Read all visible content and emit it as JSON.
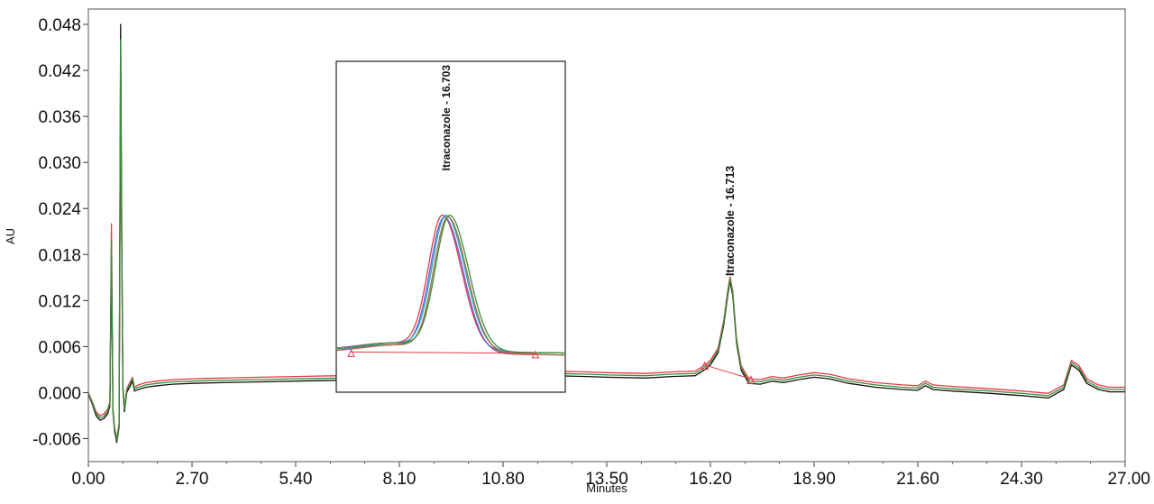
{
  "chart_data": {
    "type": "line",
    "title": "",
    "xlabel": "Minutes",
    "ylabel": "AU",
    "xlim": [
      0,
      27
    ],
    "ylim": [
      -0.009,
      0.05
    ],
    "x_ticks": [
      "0.00",
      "2.70",
      "5.40",
      "8.10",
      "10.80",
      "13.50",
      "16.20",
      "18.90",
      "21.60",
      "24.30",
      "27.00"
    ],
    "y_ticks": [
      "-0.006",
      "0.000",
      "0.006",
      "0.012",
      "0.018",
      "0.024",
      "0.030",
      "0.036",
      "0.042",
      "0.048"
    ],
    "grid": false,
    "legend": "none",
    "colors": [
      "#e23a4a",
      "#111111",
      "#3a8f3a",
      "#5a5fd6",
      "#a56a3a",
      "#2aa7c9"
    ],
    "baseline_color": "#e23a4a",
    "peak": {
      "label": "Itraconazole - 16.713",
      "retention_time": 16.713,
      "height": 0.0145,
      "start": 16.05,
      "end": 17.25
    },
    "zoom_inset": {
      "label": "Itraconazole - 16.703",
      "retention_time": 16.703,
      "x_range": [
        15.6,
        17.9
      ],
      "y_range": [
        -0.0005,
        0.0215
      ]
    },
    "series": [
      {
        "x": [
          0.0,
          0.1,
          0.2,
          0.3,
          0.4,
          0.5,
          0.56,
          0.6,
          0.64,
          0.68,
          0.74,
          0.8,
          0.84,
          0.87,
          0.9,
          0.94,
          1.0,
          1.1,
          1.15,
          1.2,
          1.3,
          1.5,
          1.8,
          2.2,
          2.7,
          3.5,
          4.5,
          5.4,
          6.5,
          7.5,
          8.1,
          9.0,
          10.0,
          10.8,
          12.0,
          13.0,
          13.5,
          14.5,
          15.2,
          15.8,
          16.0,
          16.2,
          16.4,
          16.55,
          16.65,
          16.71,
          16.78,
          16.88,
          17.0,
          17.2,
          17.5,
          17.8,
          18.1,
          18.5,
          18.9,
          19.3,
          19.8,
          20.5,
          21.2,
          21.6,
          21.8,
          22.0,
          22.5,
          23.5,
          24.3,
          25.0,
          25.4,
          25.6,
          25.8,
          26.0,
          26.3,
          26.6,
          27.0
        ],
        "y": [
          0.0,
          -0.0012,
          -0.0025,
          -0.003,
          -0.0028,
          -0.0022,
          -0.0012,
          0.022,
          -0.002,
          -0.0045,
          -0.006,
          -0.004,
          0.038,
          0.018,
          0.001,
          -0.002,
          0.0005,
          0.0015,
          0.002,
          0.0007,
          0.001,
          0.0013,
          0.0015,
          0.0017,
          0.0018,
          0.0019,
          0.002,
          0.0021,
          0.0022,
          0.0023,
          0.0024,
          0.0025,
          0.0026,
          0.0027,
          0.0028,
          0.0027,
          0.0026,
          0.0025,
          0.0027,
          0.0028,
          0.0034,
          0.0042,
          0.0058,
          0.0095,
          0.0133,
          0.0151,
          0.0133,
          0.007,
          0.0035,
          0.0018,
          0.0017,
          0.0021,
          0.0019,
          0.0023,
          0.0026,
          0.0024,
          0.0018,
          0.0013,
          0.001,
          0.0009,
          0.0015,
          0.001,
          0.0008,
          0.0005,
          0.0002,
          -0.0001,
          0.001,
          0.0042,
          0.0035,
          0.0018,
          0.001,
          0.0007,
          0.0007
        ]
      },
      {
        "x": [
          0.0,
          0.1,
          0.2,
          0.3,
          0.4,
          0.5,
          0.56,
          0.6,
          0.64,
          0.68,
          0.74,
          0.8,
          0.84,
          0.87,
          0.9,
          0.94,
          1.0,
          1.1,
          1.15,
          1.2,
          1.3,
          1.5,
          1.8,
          2.2,
          2.7,
          3.5,
          4.5,
          5.4,
          6.5,
          7.5,
          8.1,
          9.0,
          10.0,
          10.8,
          12.0,
          13.0,
          13.5,
          14.5,
          15.2,
          15.8,
          16.0,
          16.2,
          16.4,
          16.55,
          16.65,
          16.71,
          16.78,
          16.88,
          17.0,
          17.2,
          17.5,
          17.8,
          18.1,
          18.5,
          18.9,
          19.3,
          19.8,
          20.5,
          21.2,
          21.6,
          21.8,
          22.0,
          22.5,
          23.5,
          24.3,
          25.0,
          25.4,
          25.6,
          25.8,
          26.0,
          26.3,
          26.6,
          27.0
        ],
        "y": [
          -0.0002,
          -0.0015,
          -0.003,
          -0.0036,
          -0.0034,
          -0.0028,
          -0.0018,
          0.018,
          -0.0025,
          -0.005,
          -0.0065,
          -0.0045,
          0.048,
          0.02,
          0.0005,
          -0.0025,
          0.0,
          0.001,
          0.0015,
          0.0002,
          0.0004,
          0.0007,
          0.0009,
          0.0011,
          0.0012,
          0.0013,
          0.0014,
          0.0015,
          0.0016,
          0.0017,
          0.0018,
          0.0019,
          0.002,
          0.0021,
          0.0022,
          0.0021,
          0.002,
          0.0019,
          0.0021,
          0.0022,
          0.0028,
          0.0036,
          0.0052,
          0.0089,
          0.0127,
          0.0145,
          0.0127,
          0.0064,
          0.0029,
          0.0012,
          0.0011,
          0.0015,
          0.0013,
          0.0017,
          0.002,
          0.0018,
          0.0012,
          0.0007,
          0.0004,
          0.0003,
          0.0009,
          0.0004,
          0.0002,
          -0.0001,
          -0.0004,
          -0.0007,
          0.0004,
          0.0036,
          0.0029,
          0.0012,
          0.0004,
          0.0001,
          0.0001
        ]
      },
      {
        "x": [
          0.0,
          0.1,
          0.2,
          0.3,
          0.4,
          0.5,
          0.56,
          0.6,
          0.64,
          0.68,
          0.74,
          0.8,
          0.84,
          0.87,
          0.9,
          0.94,
          1.0,
          1.1,
          1.15,
          1.2,
          1.3,
          1.5,
          1.8,
          2.2,
          2.7,
          3.5,
          4.5,
          5.4,
          6.5,
          7.5,
          8.1,
          9.0,
          10.0,
          10.8,
          12.0,
          13.0,
          13.5,
          14.5,
          15.2,
          15.8,
          16.0,
          16.2,
          16.4,
          16.55,
          16.65,
          16.71,
          16.78,
          16.88,
          17.0,
          17.2,
          17.5,
          17.8,
          18.1,
          18.5,
          18.9,
          19.3,
          19.8,
          20.5,
          21.2,
          21.6,
          21.8,
          22.0,
          22.5,
          23.5,
          24.3,
          25.0,
          25.4,
          25.6,
          25.8,
          26.0,
          26.3,
          26.6,
          27.0
        ],
        "y": [
          -0.0001,
          -0.0013,
          -0.0027,
          -0.0033,
          -0.0031,
          -0.0025,
          -0.0015,
          0.02,
          -0.0022,
          -0.0047,
          -0.0062,
          -0.0042,
          0.046,
          0.019,
          0.0008,
          -0.0022,
          0.0003,
          0.0013,
          0.0018,
          0.0005,
          0.0007,
          0.001,
          0.0012,
          0.0014,
          0.0015,
          0.0016,
          0.0017,
          0.0018,
          0.0019,
          0.002,
          0.0021,
          0.0022,
          0.0023,
          0.0024,
          0.0025,
          0.0024,
          0.0023,
          0.0022,
          0.0024,
          0.0025,
          0.0031,
          0.0039,
          0.0055,
          0.0092,
          0.013,
          0.0148,
          0.013,
          0.0067,
          0.0032,
          0.0015,
          0.0014,
          0.0018,
          0.0016,
          0.002,
          0.0023,
          0.0021,
          0.0015,
          0.001,
          0.0007,
          0.0006,
          0.0012,
          0.0007,
          0.0005,
          0.0002,
          -0.0001,
          -0.0004,
          0.0007,
          0.0039,
          0.0032,
          0.0015,
          0.0007,
          0.0004,
          0.0004
        ]
      }
    ]
  }
}
